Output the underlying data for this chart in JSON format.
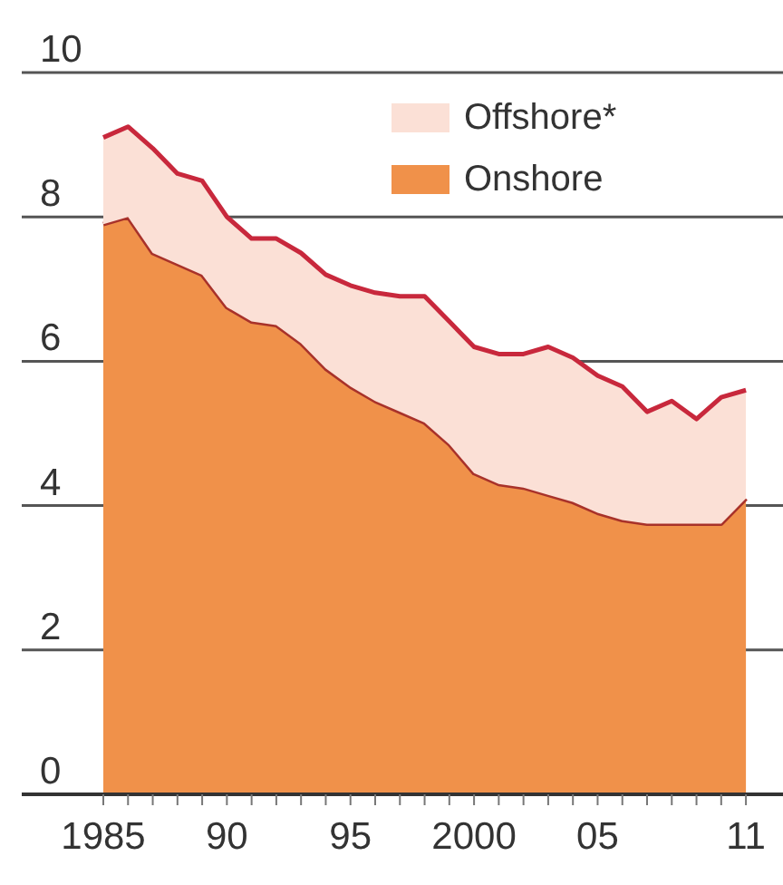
{
  "chart_data": {
    "type": "area",
    "stacked": true,
    "x": [
      1985,
      1986,
      1987,
      1988,
      1989,
      1990,
      1991,
      1992,
      1993,
      1994,
      1995,
      1996,
      1997,
      1998,
      1999,
      2000,
      2001,
      2002,
      2003,
      2004,
      2005,
      2006,
      2007,
      2008,
      2009,
      2010,
      2011
    ],
    "series": [
      {
        "name": "Onshore",
        "color": "#f0914a",
        "values": [
          7.9,
          8.0,
          7.5,
          7.35,
          7.2,
          6.75,
          6.55,
          6.5,
          6.25,
          5.9,
          5.65,
          5.45,
          5.3,
          5.15,
          4.85,
          4.45,
          4.3,
          4.25,
          4.15,
          4.05,
          3.9,
          3.8,
          3.75,
          3.75,
          3.75,
          3.75,
          4.1
        ]
      },
      {
        "name": "Offshore*",
        "color": "#fbe0d6",
        "values": [
          1.2,
          1.25,
          1.45,
          1.25,
          1.3,
          1.25,
          1.15,
          1.2,
          1.25,
          1.3,
          1.4,
          1.5,
          1.6,
          1.75,
          1.7,
          1.75,
          1.8,
          1.85,
          2.05,
          2.0,
          1.9,
          1.85,
          1.55,
          1.7,
          1.45,
          1.75,
          1.5
        ]
      }
    ],
    "xlim": [
      1981.7,
      2012.5
    ],
    "xticks": [
      {
        "value": 1985,
        "label": "1985"
      },
      {
        "value": 1986,
        "label": null
      },
      {
        "value": 1987,
        "label": null
      },
      {
        "value": 1988,
        "label": null
      },
      {
        "value": 1989,
        "label": null
      },
      {
        "value": 1990,
        "label": "90"
      },
      {
        "value": 1991,
        "label": null
      },
      {
        "value": 1992,
        "label": null
      },
      {
        "value": 1993,
        "label": null
      },
      {
        "value": 1994,
        "label": null
      },
      {
        "value": 1995,
        "label": "95"
      },
      {
        "value": 1996,
        "label": null
      },
      {
        "value": 1997,
        "label": null
      },
      {
        "value": 1998,
        "label": null
      },
      {
        "value": 1999,
        "label": null
      },
      {
        "value": 2000,
        "label": "2000"
      },
      {
        "value": 2001,
        "label": null
      },
      {
        "value": 2002,
        "label": null
      },
      {
        "value": 2003,
        "label": null
      },
      {
        "value": 2004,
        "label": null
      },
      {
        "value": 2005,
        "label": "05"
      },
      {
        "value": 2006,
        "label": null
      },
      {
        "value": 2007,
        "label": null
      },
      {
        "value": 2008,
        "label": null
      },
      {
        "value": 2009,
        "label": null
      },
      {
        "value": 2010,
        "label": null
      },
      {
        "value": 2011,
        "label": "11"
      }
    ],
    "ylim": [
      0,
      10
    ],
    "yticks": [
      0,
      2,
      4,
      6,
      8,
      10
    ],
    "grid": "y",
    "legend": "top right"
  }
}
